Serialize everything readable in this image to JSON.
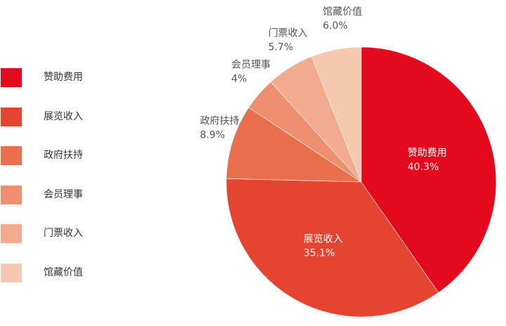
{
  "chart_data": {
    "type": "pie",
    "categories": [
      "赞助费用",
      "展览收入",
      "政府扶持",
      "会员理事",
      "门票收入",
      "馆藏价值"
    ],
    "values": [
      40.3,
      35.1,
      8.9,
      4,
      5.7,
      6.0
    ],
    "value_labels": [
      "40.3%",
      "35.1%",
      "8.9%",
      "4%",
      "5.7%",
      "6.0%"
    ],
    "colors": [
      "#e20a1c",
      "#e54430",
      "#ea6f4d",
      "#ee9070",
      "#f2ab8e",
      "#f6c8b0"
    ],
    "legend_position": "left"
  },
  "legend": {
    "items": [
      {
        "label": "赞助费用",
        "color": "#e20a1c"
      },
      {
        "label": "展览收入",
        "color": "#e54430"
      },
      {
        "label": "政府扶持",
        "color": "#ea6f4d"
      },
      {
        "label": "会员理事",
        "color": "#ee9070"
      },
      {
        "label": "门票收入",
        "color": "#f2ab8e"
      },
      {
        "label": "馆藏价值",
        "color": "#f6c8b0"
      }
    ]
  }
}
